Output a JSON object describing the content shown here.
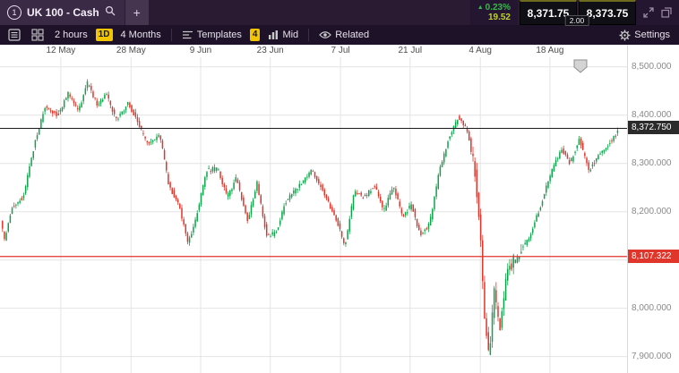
{
  "colors": {
    "accent_yellow": "#f2c500",
    "change_green": "#36b84b",
    "change_points": "#bcd22b",
    "support_red": "#e0352b"
  },
  "header": {
    "instrument_number": "1",
    "instrument_name": "UK 100 - Cash",
    "add_tab": "+",
    "change_arrow": "▲",
    "change_pct": "0.23%",
    "change_pts": "19.52",
    "sell_price": "8,371.75",
    "buy_price": "8,373.75",
    "spread": "2.00"
  },
  "toolbar": {
    "interval": "2 hours",
    "interval_badge": "1D",
    "range": "4 Months",
    "templates_label": "Templates",
    "templates_badge": "4",
    "price_type": "Mid",
    "related_label": "Related",
    "settings_label": "Settings"
  },
  "chart_data": {
    "type": "candlestick",
    "instrument": "UK 100 - Cash",
    "interval": "2 hours",
    "range": "4 Months",
    "y_top": 8520,
    "y_bottom": 7866,
    "x_ticks": [
      {
        "label": "12 May",
        "f": 0.097
      },
      {
        "label": "28 May",
        "f": 0.209
      },
      {
        "label": "9 Jun",
        "f": 0.32
      },
      {
        "label": "23 Jun",
        "f": 0.431
      },
      {
        "label": "7 Jul",
        "f": 0.543
      },
      {
        "label": "21 Jul",
        "f": 0.654
      },
      {
        "label": "4 Aug",
        "f": 0.766
      },
      {
        "label": "18 Aug",
        "f": 0.877
      }
    ],
    "y_ticks": [
      {
        "label": "8,500.000",
        "value": 8500
      },
      {
        "label": "8,400.000",
        "value": 8400
      },
      {
        "label": "8,300.000",
        "value": 8300
      },
      {
        "label": "8,200.000",
        "value": 8200
      },
      {
        "label": "8,100.000",
        "value": 8100
      },
      {
        "label": "8,000.000",
        "value": 8000
      },
      {
        "label": "7,900.000",
        "value": 7900
      }
    ],
    "current_price": {
      "label": "8,372.750",
      "value": 8372.75
    },
    "support_line": {
      "label": "8,107.322",
      "value": 8107.322,
      "color": "#e0352b"
    },
    "colors": {
      "up": "#0ea34a",
      "down": "#e0352b",
      "grid": "#e4e4e4",
      "current_line": "#1a1a1a"
    },
    "path_note": "approximate price path anchors [x-fraction, price] read from chart",
    "path": [
      [
        0.003,
        8190
      ],
      [
        0.01,
        8140
      ],
      [
        0.022,
        8210
      ],
      [
        0.04,
        8230
      ],
      [
        0.058,
        8340
      ],
      [
        0.075,
        8420
      ],
      [
        0.095,
        8400
      ],
      [
        0.112,
        8445
      ],
      [
        0.128,
        8410
      ],
      [
        0.143,
        8468
      ],
      [
        0.158,
        8420
      ],
      [
        0.172,
        8445
      ],
      [
        0.188,
        8390
      ],
      [
        0.208,
        8425
      ],
      [
        0.222,
        8385
      ],
      [
        0.238,
        8340
      ],
      [
        0.258,
        8360
      ],
      [
        0.272,
        8255
      ],
      [
        0.288,
        8215
      ],
      [
        0.303,
        8135
      ],
      [
        0.315,
        8185
      ],
      [
        0.333,
        8285
      ],
      [
        0.35,
        8290
      ],
      [
        0.365,
        8230
      ],
      [
        0.38,
        8270
      ],
      [
        0.398,
        8180
      ],
      [
        0.413,
        8260
      ],
      [
        0.428,
        8150
      ],
      [
        0.443,
        8155
      ],
      [
        0.458,
        8220
      ],
      [
        0.478,
        8250
      ],
      [
        0.5,
        8285
      ],
      [
        0.52,
        8240
      ],
      [
        0.54,
        8180
      ],
      [
        0.553,
        8130
      ],
      [
        0.568,
        8240
      ],
      [
        0.585,
        8230
      ],
      [
        0.6,
        8255
      ],
      [
        0.615,
        8200
      ],
      [
        0.63,
        8255
      ],
      [
        0.645,
        8190
      ],
      [
        0.66,
        8215
      ],
      [
        0.673,
        8150
      ],
      [
        0.688,
        8175
      ],
      [
        0.703,
        8280
      ],
      [
        0.718,
        8350
      ],
      [
        0.733,
        8395
      ],
      [
        0.748,
        8370
      ],
      [
        0.76,
        8290
      ],
      [
        0.769,
        8150
      ],
      [
        0.776,
        7975
      ],
      [
        0.783,
        7898
      ],
      [
        0.791,
        8040
      ],
      [
        0.8,
        7952
      ],
      [
        0.81,
        8065
      ],
      [
        0.822,
        8100
      ],
      [
        0.838,
        8125
      ],
      [
        0.853,
        8165
      ],
      [
        0.868,
        8225
      ],
      [
        0.883,
        8285
      ],
      [
        0.898,
        8330
      ],
      [
        0.912,
        8300
      ],
      [
        0.927,
        8350
      ],
      [
        0.942,
        8285
      ],
      [
        0.956,
        8315
      ],
      [
        0.97,
        8335
      ],
      [
        0.983,
        8355
      ],
      [
        0.99,
        8372.75
      ]
    ]
  }
}
